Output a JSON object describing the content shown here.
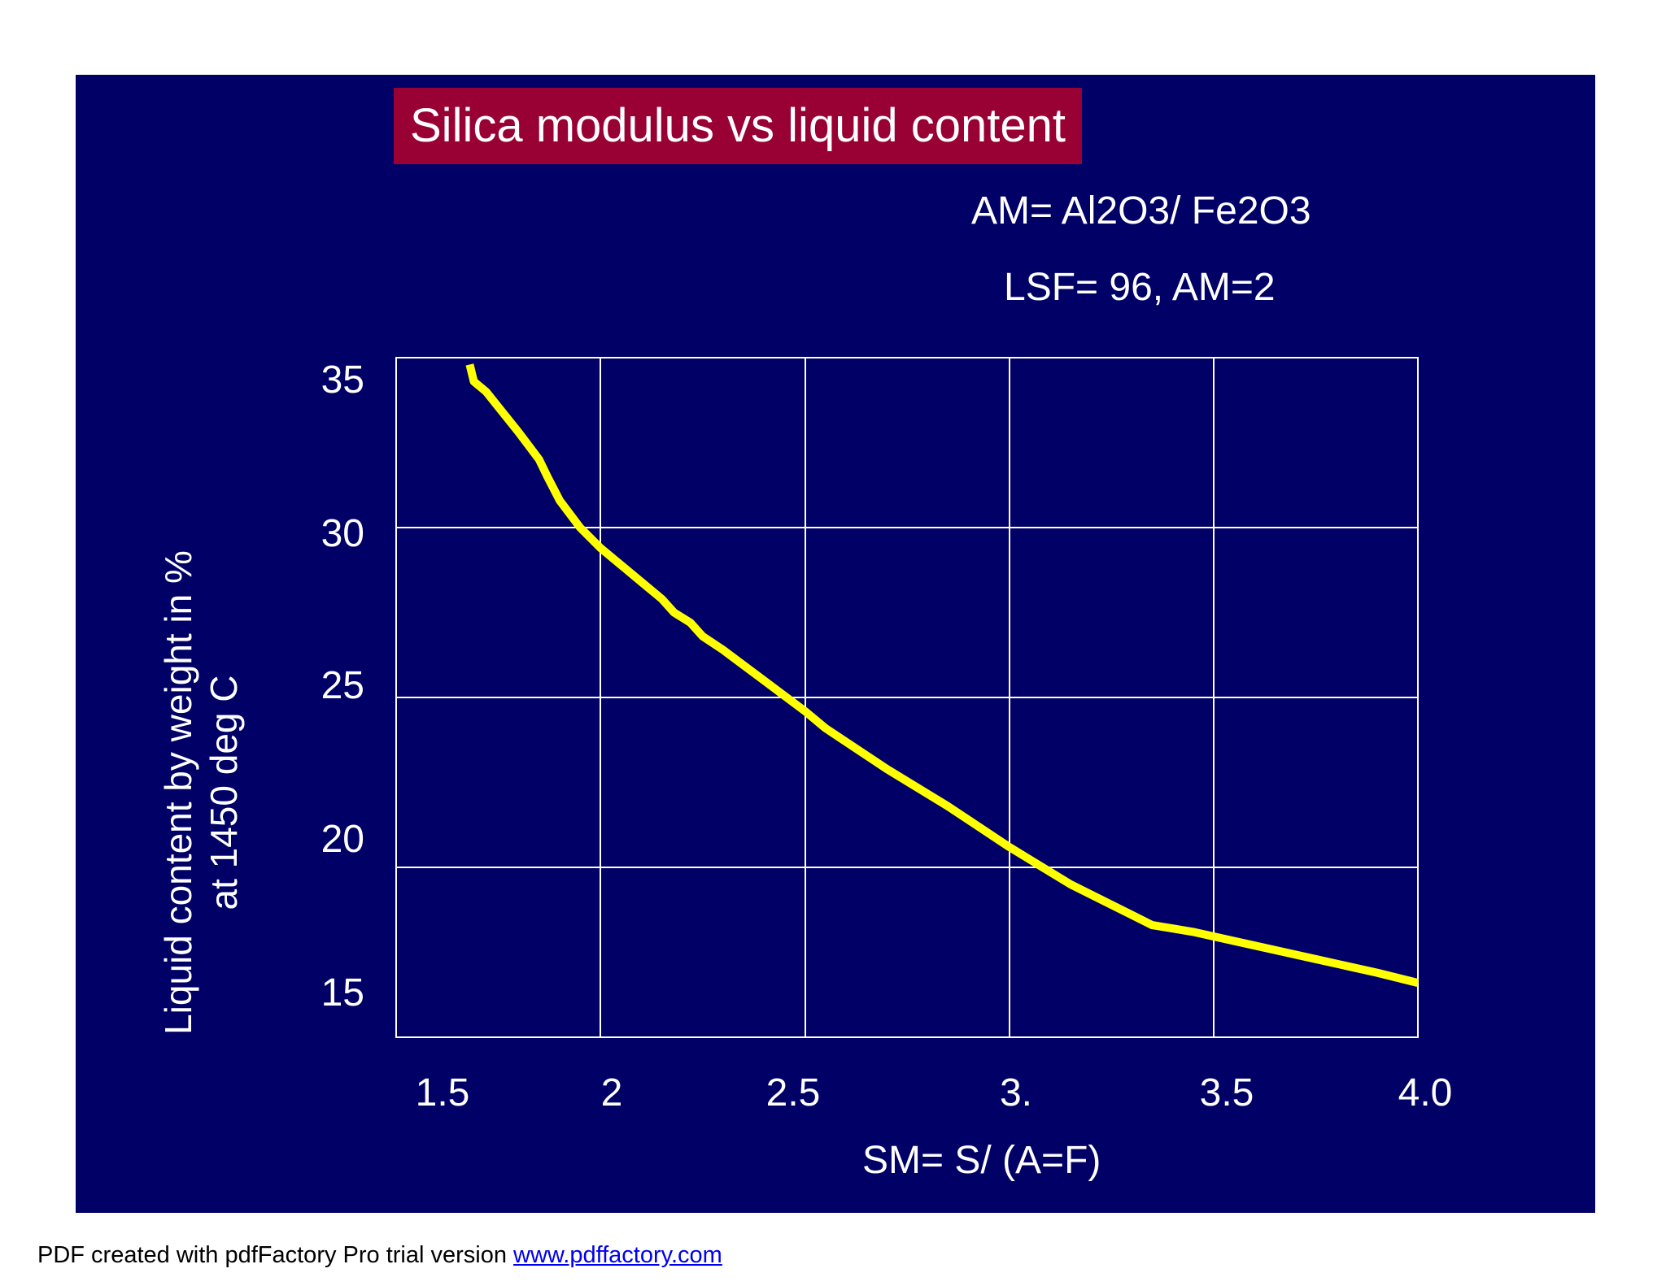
{
  "chart_data": {
    "type": "line",
    "title": "Silica modulus vs liquid content",
    "annotations": [
      "AM= Al2O3/ Fe2O3",
      "LSF= 96, AM=2"
    ],
    "xlabel": "SM= S/ (A=F)",
    "ylabel_lines": [
      "Liquid content by weight in %",
      "at 1450 deg C"
    ],
    "xlim": [
      1.5,
      4.0
    ],
    "ylim": [
      15,
      35
    ],
    "x_ticks": [
      1.5,
      2,
      2.5,
      3,
      3.5,
      4.0
    ],
    "x_tick_labels": [
      "1.5",
      "2",
      "2.5",
      "3.",
      "3.5",
      "4.0"
    ],
    "y_ticks": [
      35,
      30,
      25,
      20,
      15
    ],
    "y_tick_labels": [
      "35",
      "30",
      "25",
      "20",
      "15"
    ],
    "grid": true,
    "series": [
      {
        "name": "Liquid content",
        "color": "#ffff00",
        "x": [
          1.68,
          1.69,
          1.72,
          1.8,
          1.85,
          1.87,
          1.9,
          1.95,
          2.0,
          2.1,
          2.15,
          2.18,
          2.22,
          2.25,
          2.3,
          2.4,
          2.5,
          2.55,
          2.7,
          2.85,
          3.0,
          3.15,
          3.25,
          3.3,
          3.35,
          3.4,
          3.45,
          3.6,
          3.75,
          3.9,
          4.0
        ],
        "y": [
          34.8,
          34.3,
          34.0,
          32.8,
          32.0,
          31.5,
          30.8,
          30.0,
          29.4,
          28.4,
          27.9,
          27.5,
          27.2,
          26.8,
          26.4,
          25.5,
          24.6,
          24.1,
          22.9,
          21.8,
          20.6,
          19.5,
          18.9,
          18.6,
          18.3,
          18.2,
          18.1,
          17.7,
          17.3,
          16.9,
          16.6
        ]
      }
    ]
  },
  "footer": {
    "text": "PDF created with pdfFactory Pro trial version ",
    "link": "www.pdffactory.com"
  }
}
